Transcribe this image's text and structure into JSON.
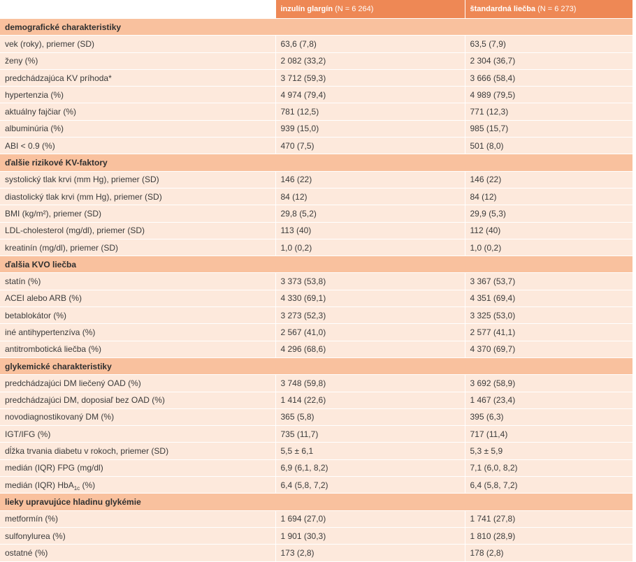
{
  "header": {
    "col2_bold": "inzulín glargín",
    "col2_suffix": " (N = 6 264)",
    "col3_bold": "štandardná liečba",
    "col3_suffix": " (N = 6 273)"
  },
  "sections": [
    {
      "title": "demografické charakteristiky",
      "rows": [
        {
          "label": "vek (roky), priemer (SD)",
          "glargin": "63,6 (7,8)",
          "standard": "63,5 (7,9)"
        },
        {
          "label": "ženy (%)",
          "glargin": "2 082 (33,2)",
          "standard": "2 304 (36,7)"
        },
        {
          "label": "predchádzajúca KV príhoda*",
          "glargin": "3 712 (59,3)",
          "standard": "3 666 (58,4)"
        },
        {
          "label": "hypertenzia (%)",
          "glargin": "4 974 (79,4)",
          "standard": "4 989 (79,5)"
        },
        {
          "label": "aktuálny fajčiar (%)",
          "glargin": "781 (12,5)",
          "standard": "771 (12,3)"
        },
        {
          "label": "albuminúria (%)",
          "glargin": "939 (15,0)",
          "standard": "985 (15,7)"
        },
        {
          "label": "ABI < 0.9 (%)",
          "glargin": "470 (7,5)",
          "standard": "501 (8,0)"
        }
      ]
    },
    {
      "title": "ďalšie rizikové KV-faktory",
      "rows": [
        {
          "label": "systolický tlak krvi (mm Hg), priemer (SD)",
          "glargin": "146 (22)",
          "standard": "146 (22)"
        },
        {
          "label": "diastolický tlak krvi (mm Hg), priemer (SD)",
          "glargin": "84 (12)",
          "standard": "84 (12)"
        },
        {
          "label": "BMI (kg/m²), priemer (SD)",
          "glargin": "29,8 (5,2)",
          "standard": "29,9 (5,3)"
        },
        {
          "label": "LDL-cholesterol (mg/dl), priemer (SD)",
          "glargin": "113 (40)",
          "standard": "112 (40)"
        },
        {
          "label": "kreatinín (mg/dl), priemer (SD)",
          "glargin": "1,0 (0,2)",
          "standard": "1,0 (0,2)"
        }
      ]
    },
    {
      "title": "ďalšia KVO liečba",
      "rows": [
        {
          "label": "statín (%)",
          "glargin": "3 373 (53,8)",
          "standard": "3 367 (53,7)"
        },
        {
          "label": "ACEI alebo ARB (%)",
          "glargin": "4 330 (69,1)",
          "standard": "4 351 (69,4)"
        },
        {
          "label": "betablokátor (%)",
          "glargin": "3 273 (52,3)",
          "standard": "3 325 (53,0)"
        },
        {
          "label": "iné antihypertenzíva (%)",
          "glargin": "2 567 (41,0)",
          "standard": "2 577 (41,1)"
        },
        {
          "label": "antitrombotická liečba (%)",
          "glargin": "4 296 (68,6)",
          "standard": "4 370 (69,7)"
        }
      ]
    },
    {
      "title": "glykemické charakteristiky",
      "rows": [
        {
          "label": "predchádzajúci DM liečený OAD (%)",
          "glargin": "3 748 (59,8)",
          "standard": "3 692 (58,9)"
        },
        {
          "label": "predchádzajúci DM, doposiaľ bez OAD (%)",
          "glargin": "1 414 (22,6)",
          "standard": "1 467 (23,4)"
        },
        {
          "label": "novodiagnostikovaný DM (%)",
          "glargin": "365 (5,8)",
          "standard": "395 (6,3)"
        },
        {
          "label": "IGT/IFG (%)",
          "glargin": "735 (11,7)",
          "standard": "717 (11,4)"
        },
        {
          "label": "dĺžka trvania diabetu v rokoch, priemer (SD)",
          "glargin": "5,5 ± 6,1",
          "standard": "5,3 ± 5,9"
        },
        {
          "label": "medián (IQR) FPG (mg/dl)",
          "glargin": "6,9 (6,1, 8,2)",
          "standard": "7,1 (6,0, 8,2)"
        },
        {
          "label": "medián (IQR) HbA",
          "label_sub": "1c",
          "label_suffix": " (%)",
          "glargin": "6,4 (5,8, 7,2)",
          "standard": "6,4 (5,8, 7,2)"
        }
      ]
    },
    {
      "title": "lieky upravujúce hladinu glykémie",
      "rows": [
        {
          "label": "metformín (%)",
          "glargin": "1 694 (27,0)",
          "standard": "1 741 (27,8)"
        },
        {
          "label": "sulfonylurea (%)",
          "glargin": "1 901 (30,3)",
          "standard": "1 810 (28,9)"
        },
        {
          "label": "ostatné (%)",
          "glargin": "173 (2,8)",
          "standard": "178 (2,8)"
        }
      ]
    }
  ],
  "colors": {
    "header": "#ee8855",
    "section": "#f9c19e",
    "row": "#fde9dc"
  }
}
